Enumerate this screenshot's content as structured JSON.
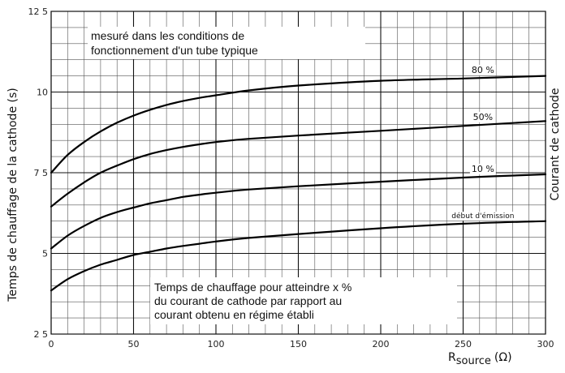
{
  "chart_data": {
    "type": "line",
    "title": "",
    "xlabel": "R",
    "xlabel_sub": "source",
    "xlabel_unit": "(Ω)",
    "ylabel": "Temps de chauffage de la cathode (s)",
    "ylabel_right": "Courant de cathode",
    "xlim": [
      0,
      300
    ],
    "ylim": [
      2.5,
      12.5
    ],
    "x_ticks": [
      0,
      50,
      100,
      150,
      200,
      250,
      300
    ],
    "x_tick_labels": [
      "0",
      "50",
      "100",
      "150",
      "200",
      "250",
      "300"
    ],
    "y_ticks": [
      2.5,
      5,
      7.5,
      10,
      12.5
    ],
    "y_tick_labels": [
      "2 5",
      "5",
      "7 5",
      "10",
      "12 5"
    ],
    "grid": true,
    "series": [
      {
        "name": "80 %",
        "x": [
          0,
          10,
          20,
          30,
          40,
          50,
          60,
          70,
          80,
          90,
          100,
          120,
          150,
          200,
          250,
          300
        ],
        "y": [
          7.5,
          8.05,
          8.45,
          8.78,
          9.05,
          9.27,
          9.45,
          9.6,
          9.72,
          9.82,
          9.9,
          10.05,
          10.2,
          10.35,
          10.42,
          10.5
        ]
      },
      {
        "name": "50%",
        "x": [
          0,
          10,
          20,
          30,
          40,
          50,
          60,
          70,
          80,
          90,
          100,
          120,
          150,
          200,
          250,
          300
        ],
        "y": [
          6.45,
          6.85,
          7.2,
          7.5,
          7.72,
          7.92,
          8.08,
          8.2,
          8.3,
          8.38,
          8.45,
          8.55,
          8.65,
          8.8,
          8.95,
          9.1
        ]
      },
      {
        "name": "10 %",
        "x": [
          0,
          10,
          20,
          30,
          40,
          50,
          60,
          70,
          80,
          90,
          100,
          120,
          150,
          200,
          250,
          300
        ],
        "y": [
          5.15,
          5.55,
          5.85,
          6.1,
          6.28,
          6.42,
          6.55,
          6.65,
          6.75,
          6.82,
          6.88,
          6.98,
          7.08,
          7.22,
          7.35,
          7.45
        ]
      },
      {
        "name": "début d'émission",
        "x": [
          0,
          10,
          20,
          30,
          40,
          50,
          60,
          70,
          80,
          90,
          100,
          120,
          150,
          200,
          250,
          300
        ],
        "y": [
          3.85,
          4.2,
          4.45,
          4.65,
          4.8,
          4.95,
          5.05,
          5.15,
          5.23,
          5.3,
          5.37,
          5.48,
          5.6,
          5.78,
          5.92,
          6.0
        ]
      }
    ],
    "annotations": [
      [
        "mesuré dans les conditions de",
        "fonctionnement d'un tube typique"
      ],
      [
        "Temps de chauffage pour atteindre x %",
        "du courant de cathode par rapport au",
        "courant obtenu en régime établi"
      ]
    ]
  }
}
